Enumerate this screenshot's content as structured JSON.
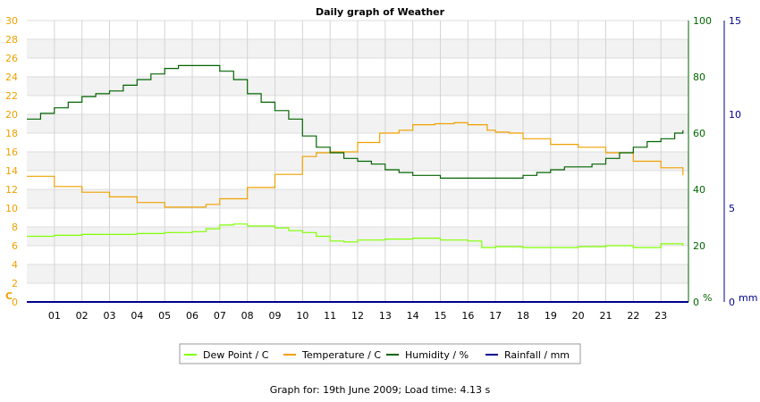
{
  "chart_data": {
    "type": "line",
    "title": "Daily graph of Weather",
    "x_ticks": [
      "01",
      "02",
      "03",
      "04",
      "05",
      "06",
      "07",
      "08",
      "09",
      "10",
      "11",
      "12",
      "13",
      "14",
      "15",
      "16",
      "17",
      "18",
      "19",
      "20",
      "21",
      "22",
      "23"
    ],
    "x_range": [
      0,
      24
    ],
    "axes": {
      "left": {
        "unit": "C",
        "color": "#f0a000",
        "ylim": [
          0,
          30
        ],
        "ticks": [
          0,
          2,
          4,
          6,
          8,
          10,
          12,
          14,
          16,
          18,
          20,
          22,
          24,
          26,
          28,
          30
        ]
      },
      "right1": {
        "unit": "%",
        "color": "#006400",
        "ylim": [
          0,
          100
        ],
        "ticks": [
          0,
          20,
          40,
          60,
          80,
          100
        ]
      },
      "right2": {
        "unit": "mm",
        "color": "#00008b",
        "ylim": [
          0,
          15
        ],
        "ticks": [
          0,
          5,
          10,
          15
        ]
      }
    },
    "grid": true,
    "series": [
      {
        "name": "Dew Point / C",
        "axis": "left",
        "color": "#7fff00",
        "x": [
          0,
          1,
          2,
          3,
          4,
          5,
          6,
          6.5,
          7,
          7.5,
          8,
          9,
          9.5,
          10,
          10.5,
          11,
          11.5,
          12,
          13,
          14,
          15,
          16,
          16.5,
          17,
          18,
          19,
          20,
          21,
          22,
          23,
          23.8
        ],
        "y": [
          7.0,
          7.1,
          7.2,
          7.2,
          7.3,
          7.4,
          7.5,
          7.8,
          8.2,
          8.3,
          8.1,
          7.9,
          7.6,
          7.4,
          7.0,
          6.5,
          6.4,
          6.6,
          6.7,
          6.8,
          6.6,
          6.5,
          5.8,
          5.9,
          5.8,
          5.8,
          5.9,
          6.0,
          5.8,
          6.2,
          6.0
        ]
      },
      {
        "name": "Temperature / C",
        "axis": "left",
        "color": "#f0a000",
        "x": [
          0,
          1,
          2,
          3,
          4,
          5,
          6,
          6.5,
          7,
          8,
          9,
          10,
          10.5,
          11,
          12,
          12.8,
          13.5,
          14,
          14.8,
          15.5,
          16,
          16.7,
          17,
          17.5,
          18,
          19,
          20,
          21,
          22,
          23,
          23.8
        ],
        "y": [
          13.4,
          12.3,
          11.7,
          11.2,
          10.6,
          10.1,
          10.1,
          10.4,
          11.0,
          12.2,
          13.6,
          15.5,
          15.9,
          16.0,
          17.0,
          18.0,
          18.3,
          18.9,
          19.0,
          19.1,
          18.9,
          18.3,
          18.1,
          18.0,
          17.4,
          16.8,
          16.5,
          15.9,
          15.0,
          14.3,
          13.5
        ]
      },
      {
        "name": "Humidity / %",
        "axis": "right1",
        "color": "#006400",
        "x": [
          0,
          0.5,
          1,
          1.5,
          2,
          2.5,
          3,
          3.5,
          4,
          4.5,
          5,
          5.5,
          6,
          6.5,
          6.8,
          7,
          7.5,
          8,
          8.5,
          9,
          9.5,
          10,
          10.5,
          11,
          11.5,
          12,
          12.5,
          13,
          13.5,
          14,
          14.5,
          15,
          15.5,
          16,
          16.5,
          17,
          17.5,
          18,
          18.5,
          19,
          19.5,
          20,
          20.5,
          21,
          21.5,
          22,
          22.5,
          23,
          23.5,
          23.8
        ],
        "y": [
          65,
          67,
          69,
          71,
          73,
          74,
          75,
          77,
          79,
          81,
          83,
          84,
          84,
          84,
          84,
          82,
          79,
          74,
          71,
          68,
          65,
          59,
          55,
          53,
          51,
          50,
          49,
          47,
          46,
          45,
          45,
          44,
          44,
          44,
          44,
          44,
          44,
          45,
          46,
          47,
          48,
          48,
          49,
          51,
          53,
          55,
          57,
          58,
          60,
          61
        ]
      },
      {
        "name": "Rainfall / mm",
        "axis": "right2",
        "color": "#00008b",
        "x": [
          0,
          24
        ],
        "y": [
          0,
          0
        ]
      }
    ]
  },
  "footer": "Graph for: 19th June 2009; Load time: 4.13 s"
}
